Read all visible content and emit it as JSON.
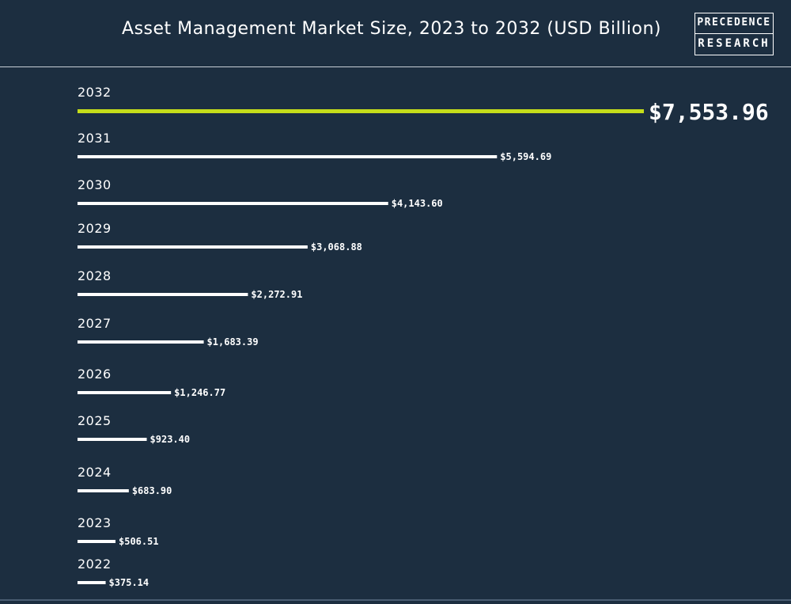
{
  "header": {
    "title": "Asset Management Market Size, 2023 to 2032 (USD Billion)",
    "logo_line1": "PRECEDENCE",
    "logo_line2": "RESEARCH"
  },
  "colors": {
    "background": "#1c2e40",
    "bar": "#ffffff",
    "highlight_bar": "#c5dd1a",
    "text": "#ffffff"
  },
  "chart_data": {
    "type": "bar",
    "orientation": "horizontal",
    "title": "Asset Management Market Size, 2023 to 2032 (USD Billion)",
    "categories": [
      "2032",
      "2031",
      "2030",
      "2029",
      "2028",
      "2027",
      "2026",
      "2025",
      "2024",
      "2023",
      "2022"
    ],
    "values": [
      7553.96,
      5594.69,
      4143.6,
      3068.88,
      2272.91,
      1683.39,
      1246.77,
      923.4,
      683.9,
      506.51,
      375.14
    ],
    "value_labels": [
      "$7,553.96",
      "$5,594.69",
      "$4,143.60",
      "$3,068.88",
      "$2,272.91",
      "$1,683.39",
      "$1,246.77",
      "$923.40",
      "$683.90",
      "$506.51",
      "$375.14"
    ],
    "highlight": "2032",
    "grid": false,
    "legend": "none"
  }
}
